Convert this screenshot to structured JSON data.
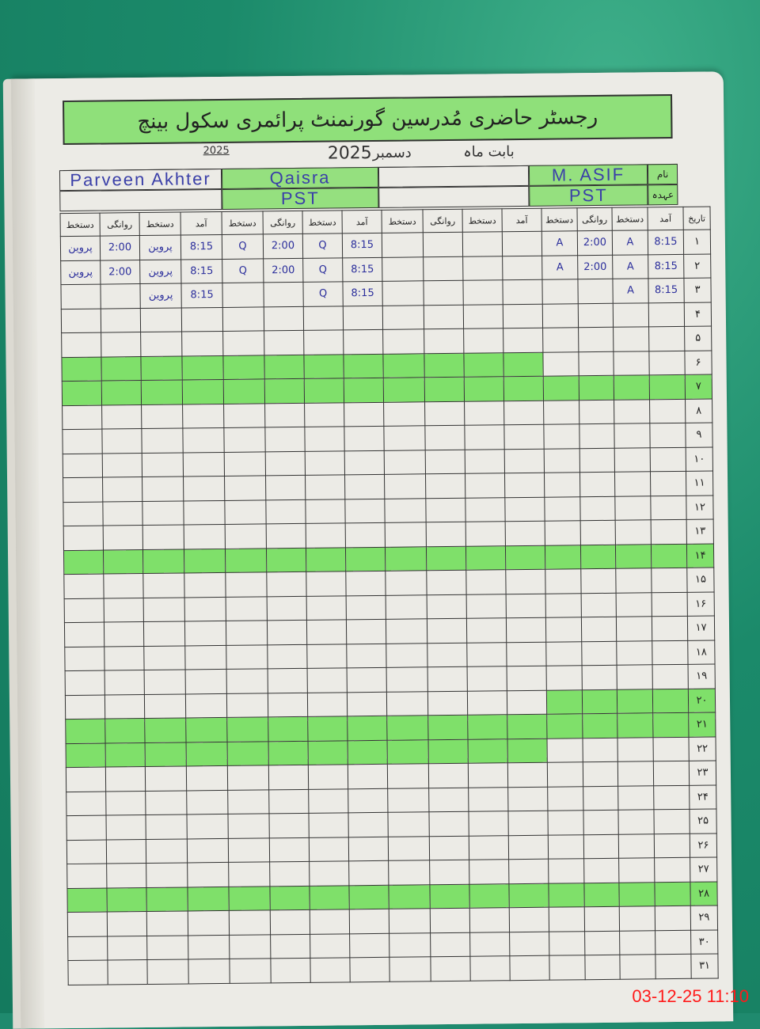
{
  "register": {
    "title": "رجسٹر حاضری مُدرسین گورنمنٹ پرائمری سکول بینچ",
    "month_label": "بابت ماہ",
    "month": "دسمبر",
    "year": "2025",
    "small_year": "2025"
  },
  "labels": {
    "name": "نام",
    "designation": "عہدہ",
    "date": "تاریخ"
  },
  "teachers": [
    {
      "name": "M. ASIF",
      "designation": "PST"
    },
    {
      "name": "Qaisra",
      "designation": "PST"
    },
    {
      "name": "",
      "designation": ""
    },
    {
      "name": "Parveen Akhter",
      "designation": ""
    }
  ],
  "columns": [
    "آمد",
    "دستخط",
    "روانگی",
    "دستخط"
  ],
  "dates": [
    "۱",
    "۲",
    "۳",
    "۴",
    "۵",
    "۶",
    "۷",
    "۸",
    "۹",
    "۱۰",
    "۱۱",
    "۱۲",
    "۱۳",
    "۱۴",
    "۱۵",
    "۱۶",
    "۱۷",
    "۱۸",
    "۱۹",
    "۲۰",
    "۲۱",
    "۲۲",
    "۲۳",
    "۲۴",
    "۲۵",
    "۲۶",
    "۲۷",
    "۲۸",
    "۲۹",
    "۳۰",
    "۳۱"
  ],
  "highlight_colors": {
    "marker": "#7fe06a"
  },
  "entries": [
    [
      [
        "8:15",
        "A",
        "2:00",
        "A"
      ],
      [
        "8:15",
        "Q",
        "2:00",
        "Q"
      ],
      [
        "",
        "",
        "",
        ""
      ],
      [
        "8:15",
        "پروین",
        "2:00",
        "پروین"
      ]
    ],
    [
      [
        "8:15",
        "A",
        "2:00",
        "A"
      ],
      [
        "8:15",
        "Q",
        "2:00",
        "Q"
      ],
      [
        "",
        "",
        "",
        ""
      ],
      [
        "8:15",
        "پروین",
        "2:00",
        "پروین"
      ]
    ],
    [
      [
        "8:15",
        "A",
        "",
        ""
      ],
      [
        "8:15",
        "Q",
        "",
        ""
      ],
      [
        "",
        "",
        "",
        ""
      ],
      [
        "8:15",
        "پروین",
        "",
        ""
      ]
    ]
  ],
  "timestamp": "03-12-25  11:10"
}
